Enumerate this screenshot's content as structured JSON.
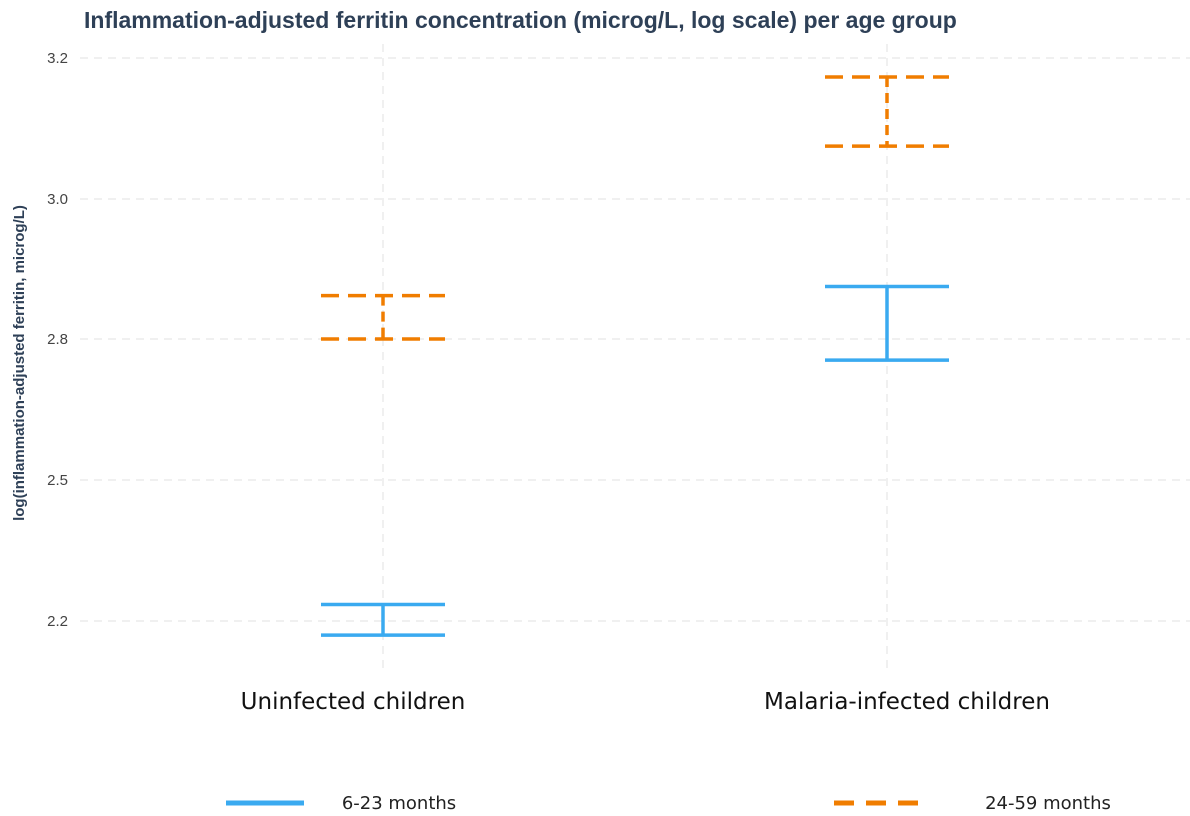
{
  "chart_data": {
    "type": "errorbar",
    "title": "Inflammation-adjusted ferritin concentration (microg/L, log scale) per age group",
    "xlabel": "",
    "ylabel": "log(inflammation-adjusted ferritin, microg/L)",
    "categories": [
      "Uninfected children",
      "Malaria-infected children"
    ],
    "ylim": [
      2.13,
      3.22
    ],
    "yticks": [
      2.2,
      2.5,
      2.8,
      3.0,
      3.2
    ],
    "ytick_labels": [
      "2.2",
      "2.5",
      "2.8",
      "3.0",
      "3.2"
    ],
    "grid": true,
    "legend_position": "bottom",
    "series": [
      {
        "name": "6-23 months",
        "color": "#3aaaf0",
        "line_style": "solid",
        "intervals": [
          {
            "category": "Uninfected children",
            "lower": 2.17,
            "upper": 2.235
          },
          {
            "category": "Malaria-infected children",
            "lower": 2.755,
            "upper": 2.875
          }
        ]
      },
      {
        "name": "24-59 months",
        "color": "#f07d00",
        "line_style": "dashed",
        "intervals": [
          {
            "category": "Uninfected children",
            "lower": 2.8,
            "upper": 2.862
          },
          {
            "category": "Malaria-infected children",
            "lower": 3.075,
            "upper": 3.173
          }
        ]
      }
    ]
  }
}
